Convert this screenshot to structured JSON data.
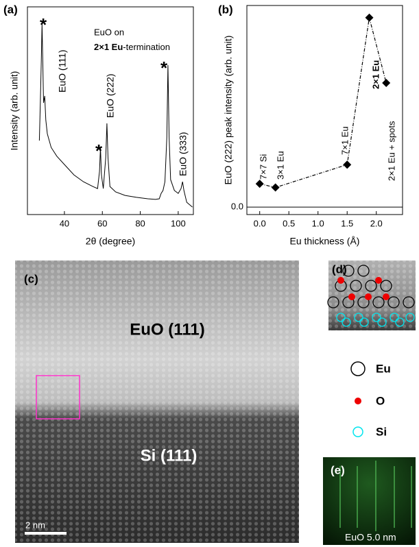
{
  "chart_data": [
    {
      "type": "line",
      "panel_label": "(a)",
      "x_label": "2θ (degree)",
      "y_label": "Intensity (arb. unit)",
      "x": [
        26.8,
        27.3,
        27.8,
        28.2,
        28.6,
        29.0,
        29.6,
        30.2,
        31,
        33,
        36,
        40,
        45,
        50,
        55,
        57.5,
        58.5,
        59,
        59.5,
        60.5,
        61.8,
        62.4,
        63,
        64,
        67,
        72,
        78,
        84,
        88,
        90,
        91,
        92,
        93,
        94,
        94.6,
        95.2,
        96,
        98,
        100,
        101.5,
        102.3,
        103,
        104.5,
        107.5
      ],
      "series": [
        {
          "color": "#000000",
          "values": [
            35.6,
            53.8,
            73.6,
            91.7,
            73.6,
            53.8,
            57.1,
            45.5,
            38.9,
            32.3,
            28.1,
            24.1,
            19.1,
            15.8,
            13.5,
            12.5,
            20.8,
            32.3,
            19.1,
            12.5,
            27.4,
            43.9,
            27.4,
            13.5,
            10.9,
            9.2,
            8.3,
            7.6,
            7.3,
            7.6,
            10.2,
            11.6,
            15.8,
            37.3,
            71.9,
            37.3,
            16.8,
            11.6,
            10.2,
            12.5,
            15.8,
            11.6,
            5.9,
            3.6
          ]
        }
      ],
      "xlim": [
        20.5,
        108
      ],
      "xticks": [
        40,
        60,
        80,
        100
      ],
      "ylim": [
        0,
        100
      ],
      "note": [
        "EuO on",
        "2×1 Eu",
        "-termination"
      ],
      "peak_labels": [
        "EuO (111)",
        "EuO (222)",
        "EuO (333)"
      ],
      "markers": [
        "*",
        "*",
        "*"
      ]
    },
    {
      "type": "line",
      "panel_label": "(b)",
      "x_label": "Eu thickness (Å)",
      "y_label": "EuO (222) peak intensity (arb. unit)",
      "x": [
        0,
        0.27,
        1.5,
        1.88,
        2.17
      ],
      "series": [
        {
          "color": "#000000",
          "values": [
            0.44,
            0.37,
            0.8,
            3.57,
            2.34
          ]
        }
      ],
      "marker": "diamond",
      "line_style": "dashdot",
      "grid": true,
      "point_labels": [
        "7×7 Si",
        "3×1 Eu",
        "7×1 Eu",
        "2×1 Eu",
        "2×1 Eu + spots"
      ],
      "xlim": [
        -0.22,
        2.45
      ],
      "ylim": [
        -0.14,
        3.8
      ],
      "xticks": [
        {
          "value": 0,
          "label": "0.0"
        },
        {
          "value": 0.5,
          "label": "0.5"
        },
        {
          "value": 1,
          "label": "1.0"
        },
        {
          "value": 1.5,
          "label": "1.5"
        },
        {
          "value": 2,
          "label": "2.0"
        }
      ],
      "yticks": [
        {
          "value": 0,
          "label": "0.0"
        }
      ]
    }
  ],
  "images": {
    "c": {
      "panel_label": "(c)",
      "top_label": "EuO (111)",
      "bottom_label": "Si (111)",
      "scale_bar": "2 nm"
    },
    "d": {
      "panel_label": "(d)",
      "legend": [
        "Eu",
        "O",
        "Si"
      ]
    },
    "e": {
      "panel_label": "(e)",
      "caption": "EuO 5.0 nm"
    }
  }
}
